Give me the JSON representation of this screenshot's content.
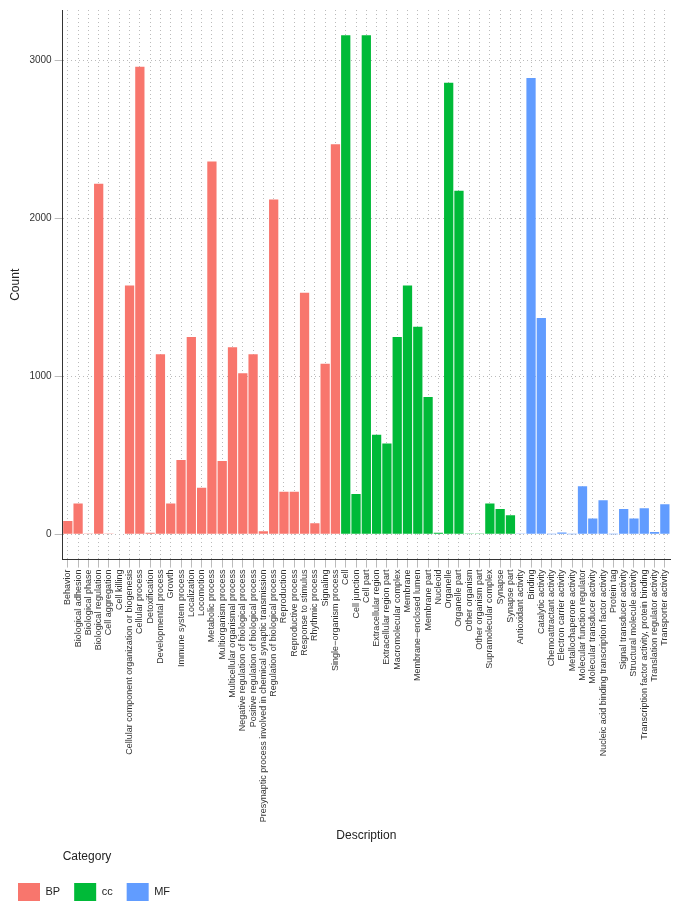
{
  "chart_data": {
    "type": "bar",
    "x_label": "Description",
    "y_label": "Count",
    "legend_title": "Category",
    "legend": "bottom",
    "grid": true,
    "ylim": [
      -160,
      3320
    ],
    "yticks": [
      0,
      1000,
      2000,
      3000
    ],
    "categories": [
      "Behavior",
      "Biological adhesion",
      "Biological phase",
      "Biological regulation",
      "Cell aggregation",
      "Cell killing",
      "Cellular component organization or biogenesis",
      "Cellular process",
      "Detoxification",
      "Developmental process",
      "Growth",
      "Immune system process",
      "Localization",
      "Locomotion",
      "Metabolic process",
      "Multiorganism process",
      "Multicellular organismal process",
      "Negative regulation of biological process",
      "Positive regulation of biological process",
      "Presynaptic process involved in chemical synaptic transmission",
      "Regulation of biological process",
      "Reproduction",
      "Reproductive process",
      "Response to stimulus",
      "Rhythmic process",
      "Signaling",
      "Single−organism process",
      "Cell",
      "Cell junction",
      "Cell part",
      "Extracellular region",
      "Extracellular region part",
      "Macromolecular complex",
      "Membrane",
      "Membrane−enclosed lumen",
      "Membrane part",
      "Nucleoid",
      "Organelle",
      "Organelle part",
      "Other organism",
      "Other organism part",
      "Supramolecular complex",
      "Synapse",
      "Synapse part",
      "Antioxidant activity",
      "Binding",
      "Catalytic activity",
      "Chemoattractant activity",
      "Electron carrier activity",
      "Metallochaperone activity",
      "Molecular function regulator",
      "Molecular transducer activity",
      "Nucleic acid binding transcription factor activity",
      "Protein tag",
      "Signal transducer activity",
      "Structural molecule activity",
      "Transcription factor activity, protein binding",
      "Translation regulator activity",
      "Transporter activity"
    ],
    "series": [
      {
        "name": "BP",
        "color": "#F8766D",
        "values": [
          85,
          195,
          2,
          2220,
          2,
          3,
          1575,
          2960,
          10,
          1140,
          195,
          470,
          1250,
          295,
          2360,
          465,
          1185,
          1020,
          1140,
          20,
          2120,
          270,
          270,
          1530,
          70,
          1080,
          2470,
          null,
          null,
          null,
          null,
          null,
          null,
          null,
          null,
          null,
          null,
          null,
          null,
          null,
          null,
          null,
          null,
          null,
          null,
          null,
          null,
          null,
          null,
          null,
          null,
          null,
          null,
          null,
          null,
          null,
          null,
          null,
          null
        ]
      },
      {
        "name": "cc",
        "color": "#00BA38",
        "values": [
          null,
          null,
          null,
          null,
          null,
          null,
          null,
          null,
          null,
          null,
          null,
          null,
          null,
          null,
          null,
          null,
          null,
          null,
          null,
          null,
          null,
          null,
          null,
          null,
          null,
          null,
          null,
          3160,
          255,
          3160,
          630,
          575,
          1250,
          1575,
          1315,
          870,
          10,
          2860,
          2175,
          5,
          5,
          195,
          160,
          120,
          null,
          null,
          null,
          null,
          null,
          null,
          null,
          null,
          null,
          null,
          null,
          null,
          null,
          null,
          null
        ]
      },
      {
        "name": "MF",
        "color": "#619CFF",
        "values": [
          null,
          null,
          null,
          null,
          null,
          null,
          null,
          null,
          null,
          null,
          null,
          null,
          null,
          null,
          null,
          null,
          null,
          null,
          null,
          null,
          null,
          null,
          null,
          null,
          null,
          null,
          null,
          null,
          null,
          null,
          null,
          null,
          null,
          null,
          null,
          null,
          null,
          null,
          null,
          null,
          null,
          null,
          null,
          null,
          5,
          2890,
          1370,
          1,
          12,
          1,
          305,
          100,
          215,
          1,
          160,
          100,
          165,
          15,
          190
        ]
      }
    ]
  }
}
